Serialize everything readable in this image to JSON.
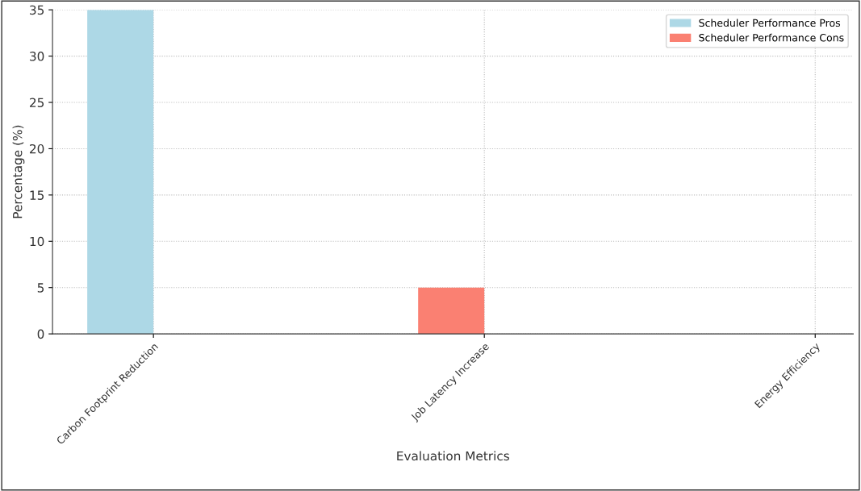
{
  "chart_data": {
    "type": "bar",
    "xlabel": "Evaluation Metrics",
    "ylabel": "Percentage (%)",
    "categories": [
      "Carbon Footprint Reduction",
      "Job Latency Increase",
      "Energy Efficiency"
    ],
    "series": [
      {
        "name": "Scheduler Performance Pros",
        "color": "#add8e6",
        "values": [
          35,
          0,
          0
        ]
      },
      {
        "name": "Scheduler Performance Cons",
        "color": "#fa8072",
        "values": [
          0,
          5,
          0
        ]
      }
    ],
    "ylim": [
      0,
      35
    ],
    "yticks": [
      0,
      5,
      10,
      15,
      20,
      25,
      30,
      35
    ],
    "grid": true,
    "legend": "top right"
  }
}
